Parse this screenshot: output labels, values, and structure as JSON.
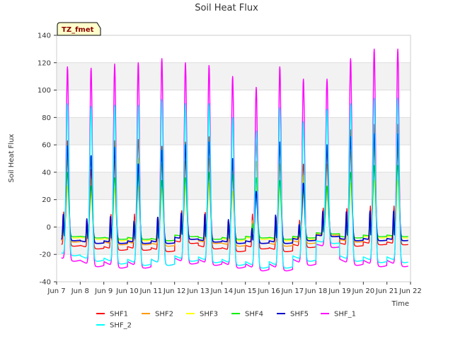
{
  "chart_data": {
    "type": "line",
    "title": "Soil Heat Flux",
    "xlabel": "Time",
    "ylabel": "Soil Heat Flux",
    "xlim": [
      7,
      22
    ],
    "ylim": [
      -40,
      140
    ],
    "yticks": [
      -40,
      -20,
      0,
      20,
      40,
      60,
      80,
      100,
      120,
      140
    ],
    "xticks": [
      {
        "value": 7,
        "label": "Jun 7"
      },
      {
        "value": 8,
        "label": "Jun 8"
      },
      {
        "value": 9,
        "label": "Jun 9"
      },
      {
        "value": 10,
        "label": "Jun 10"
      },
      {
        "value": 11,
        "label": "Jun 11"
      },
      {
        "value": 12,
        "label": "Jun 12"
      },
      {
        "value": 13,
        "label": "Jun 13"
      },
      {
        "value": 14,
        "label": "Jun 14"
      },
      {
        "value": 15,
        "label": "Jun 15"
      },
      {
        "value": 16,
        "label": "Jun 16"
      },
      {
        "value": 17,
        "label": "Jun 17"
      },
      {
        "value": 18,
        "label": "Jun 18"
      },
      {
        "value": 19,
        "label": "Jun 19"
      },
      {
        "value": 20,
        "label": "Jun 20"
      },
      {
        "value": 21,
        "label": "Jun 21"
      },
      {
        "value": 22,
        "label": "Jun 22"
      }
    ],
    "x_range": [
      7.2,
      21.9
    ],
    "annotation": "TZ_fmet",
    "legend_position": "bottom",
    "series": [
      {
        "name": "SHF1",
        "color": "#ff0000",
        "width": 1.3,
        "peaks": [
          63,
          42,
          63,
          64,
          59,
          62,
          66,
          47,
          62,
          60,
          46,
          58,
          71,
          75
        ],
        "mins": [
          -14,
          -16,
          -17,
          -17,
          -18,
          -12,
          -16,
          -18,
          -16,
          -18,
          -15,
          -7,
          -14,
          -13
        ],
        "amp2": 0.35,
        "p2": 0.3,
        "w2": 0.03
      },
      {
        "name": "SHF2",
        "color": "#ff9900",
        "width": 1.3,
        "peaks": [
          50,
          35,
          48,
          50,
          46,
          48,
          50,
          40,
          48,
          46,
          38,
          46,
          55,
          58
        ],
        "mins": [
          -11,
          -12,
          -13,
          -13,
          -14,
          -9,
          -12,
          -14,
          -12,
          -14,
          -12,
          -6,
          -11,
          -10
        ],
        "amp2": 0.3,
        "p2": 0.3,
        "w2": 0.03
      },
      {
        "name": "SHF3",
        "color": "#ffff00",
        "width": 1.3,
        "peaks": [
          30,
          25,
          28,
          30,
          28,
          30,
          32,
          26,
          30,
          28,
          24,
          28,
          32,
          34
        ],
        "mins": [
          -8,
          -9,
          -10,
          -10,
          -10,
          -7,
          -9,
          -10,
          -9,
          -10,
          -9,
          -5,
          -8,
          -8
        ],
        "amp2": 0.2,
        "p2": 0.3,
        "w2": 0.03
      },
      {
        "name": "SHF4",
        "color": "#00ee00",
        "width": 1.3,
        "peaks": [
          40,
          30,
          36,
          38,
          34,
          36,
          40,
          38,
          36,
          34,
          28,
          30,
          40,
          45
        ],
        "mins": [
          -7,
          -8,
          -9,
          -9,
          -10,
          -7,
          -9,
          -9,
          -8,
          -9,
          -8,
          -5,
          -8,
          -7
        ],
        "amp2": 0.25,
        "p2": 0.3,
        "w2": 0.03
      },
      {
        "name": "SHF5",
        "color": "#0000cc",
        "width": 1.6,
        "peaks": [
          59,
          52,
          58,
          46,
          56,
          60,
          62,
          50,
          26,
          62,
          32,
          60,
          66,
          68
        ],
        "mins": [
          -10,
          -12,
          -12,
          -12,
          -12,
          -9,
          -11,
          -12,
          -12,
          -12,
          -10,
          -7,
          -10,
          -10
        ],
        "amp2": 0.3,
        "p2": 0.28,
        "w2": 0.03
      },
      {
        "name": "SHF_1",
        "color": "#ff00ff",
        "width": 1.4,
        "peaks": [
          117,
          116,
          119,
          120,
          123,
          120,
          118,
          110,
          102,
          117,
          108,
          108,
          123,
          130
        ],
        "mins": [
          -25,
          -29,
          -30,
          -30,
          -28,
          -27,
          -28,
          -30,
          -32,
          -32,
          -28,
          -15,
          -28,
          -29
        ],
        "amp2": 0.0,
        "p2": 0.3,
        "w2": 0.03
      },
      {
        "name": "SHF_2",
        "color": "#00ffff",
        "width": 1.4,
        "peaks": [
          90,
          88,
          89,
          89,
          93,
          90,
          90,
          80,
          70,
          87,
          77,
          86,
          90,
          94
        ],
        "mins": [
          -21,
          -25,
          -27,
          -28,
          -28,
          -25,
          -26,
          -28,
          -30,
          -30,
          -25,
          -12,
          -25,
          -26
        ],
        "amp2": 0.0,
        "p2": 0.3,
        "w2": 0.03
      }
    ]
  }
}
